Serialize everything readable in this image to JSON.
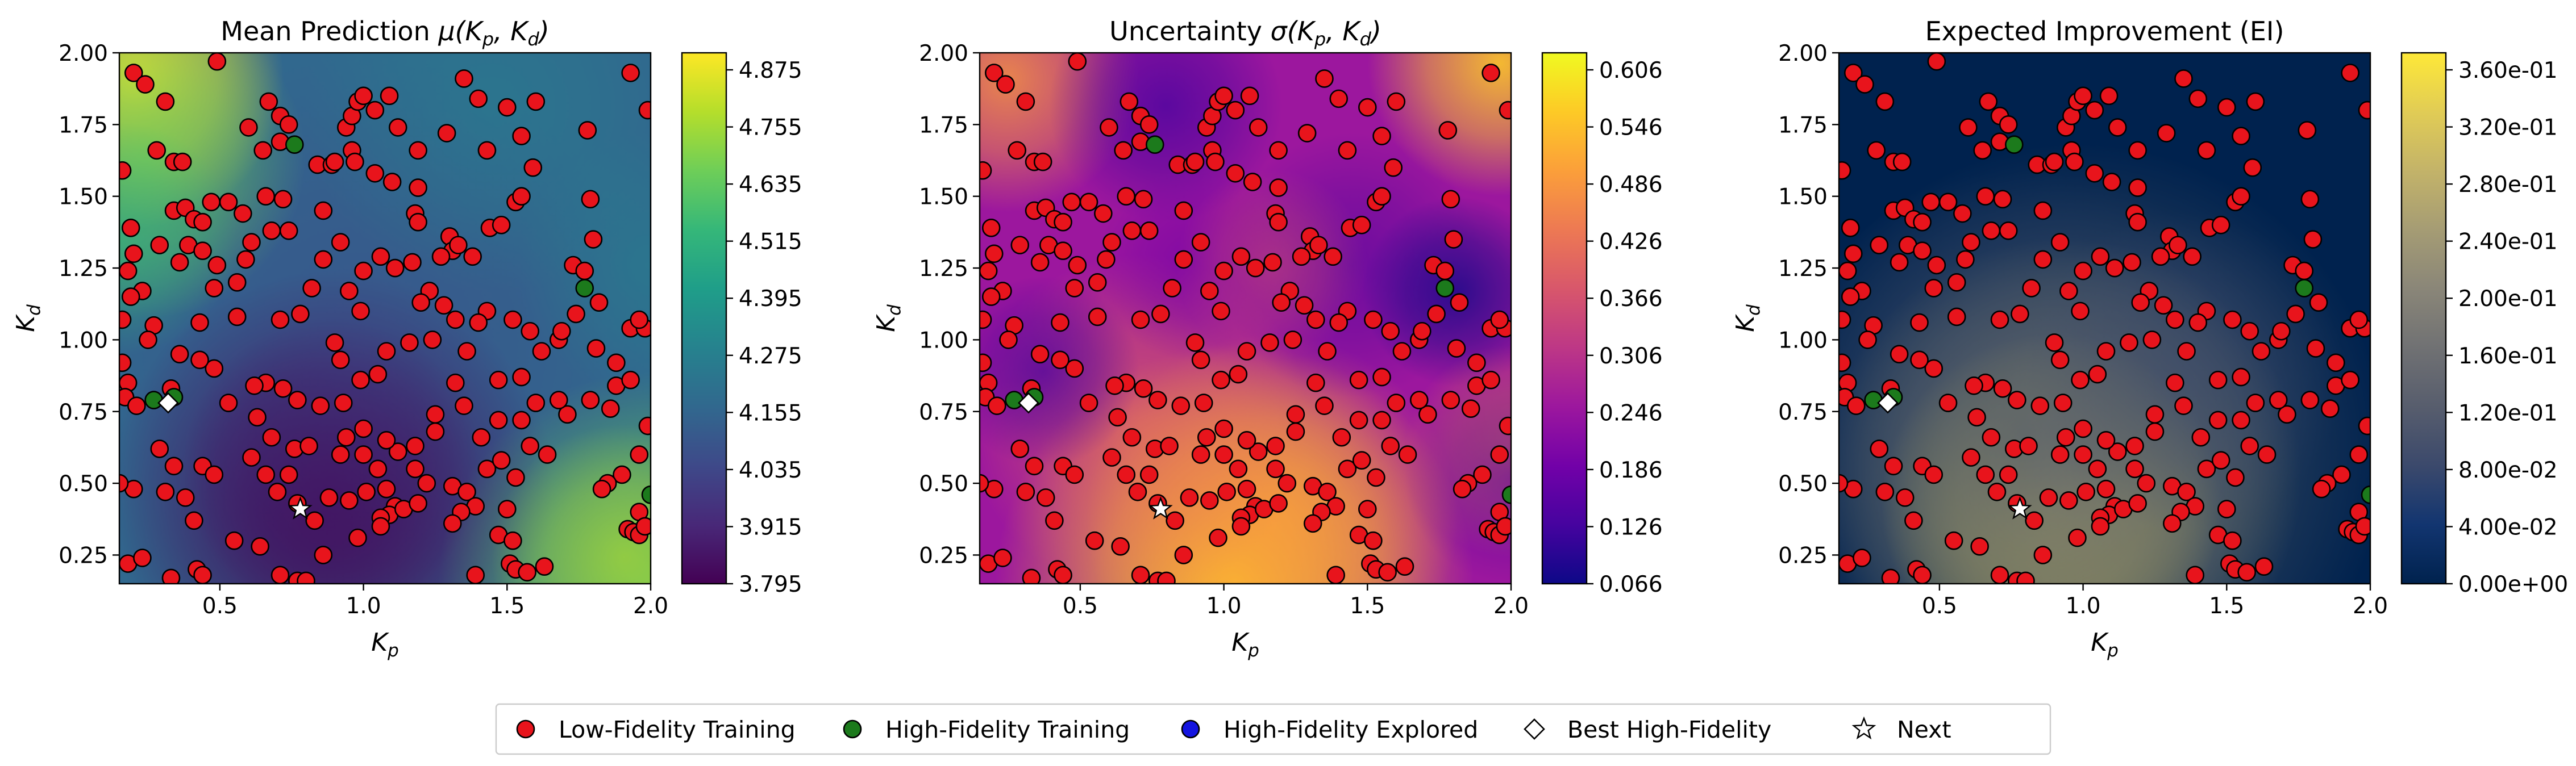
{
  "figure": {
    "panels": [
      {
        "id": "mean",
        "title": "Mean Prediction μ(Kₚ, K_d)",
        "title_parts": {
          "prefix": "Mean Prediction ",
          "func": "μ"
        },
        "colormap": "viridis",
        "colorbar_ticks": [
          "4.875",
          "4.755",
          "4.635",
          "4.515",
          "4.395",
          "4.275",
          "4.155",
          "4.035",
          "3.915",
          "3.795"
        ]
      },
      {
        "id": "uncertainty",
        "title": "Uncertainty σ(Kₚ, K_d)",
        "title_parts": {
          "prefix": "Uncertainty ",
          "func": "σ"
        },
        "colormap": "plasma",
        "colorbar_ticks": [
          "0.606",
          "0.546",
          "0.486",
          "0.426",
          "0.366",
          "0.306",
          "0.246",
          "0.186",
          "0.126",
          "0.066"
        ]
      },
      {
        "id": "ei",
        "title": "Expected Improvement (EI)",
        "title_parts": {
          "prefix": "Expected Improvement (EI)",
          "func": ""
        },
        "colormap": "cividis",
        "colorbar_ticks": [
          "3.60e-01",
          "3.20e-01",
          "2.80e-01",
          "2.40e-01",
          "2.00e-01",
          "1.60e-01",
          "1.20e-01",
          "8.00e-02",
          "4.00e-02",
          "0.00e+00"
        ]
      }
    ],
    "x_axis": {
      "label": "K",
      "label_sub": "p",
      "ticks": [
        "0.5",
        "1.0",
        "1.5",
        "2.0"
      ]
    },
    "y_axis": {
      "label": "K",
      "label_sub": "d",
      "ticks": [
        "2.00",
        "1.75",
        "1.50",
        "1.25",
        "1.00",
        "0.75",
        "0.50",
        "0.25"
      ]
    },
    "legend": [
      {
        "label": "Low-Fidelity Training",
        "marker": "circle",
        "color": "#e8141c"
      },
      {
        "label": "High-Fidelity Training",
        "marker": "circle",
        "color": "#1c7a1c"
      },
      {
        "label": "High-Fidelity Explored",
        "marker": "circle",
        "color": "#1414e0"
      },
      {
        "label": "Best High-Fidelity",
        "marker": "diamond",
        "color": "#ffffff"
      },
      {
        "label": "Next",
        "marker": "star",
        "color": "#ffffff"
      }
    ]
  },
  "chart_data": {
    "type": "scatter",
    "xlim": [
      0.15,
      2.0
    ],
    "ylim": [
      0.15,
      2.0
    ],
    "x_ticks": [
      0.5,
      1.0,
      1.5,
      2.0
    ],
    "y_ticks": [
      0.25,
      0.5,
      0.75,
      1.0,
      1.25,
      1.5,
      1.75,
      2.0
    ],
    "background": "heatmap",
    "grid": false,
    "legend_position": "bottom-center",
    "series": [
      {
        "name": "Low-Fidelity Training",
        "color": "#e8141c",
        "points": [
          [
            0.2,
            1.93
          ],
          [
            0.24,
            1.89
          ],
          [
            0.31,
            1.83
          ],
          [
            0.49,
            1.97
          ],
          [
            0.16,
            1.59
          ],
          [
            0.19,
            1.39
          ],
          [
            0.2,
            1.3
          ],
          [
            0.18,
            1.24
          ],
          [
            0.23,
            1.17
          ],
          [
            0.19,
            1.15
          ],
          [
            0.16,
            1.07
          ],
          [
            0.27,
            1.05
          ],
          [
            0.25,
            1.0
          ],
          [
            0.16,
            0.92
          ],
          [
            0.18,
            0.85
          ],
          [
            0.17,
            0.8
          ],
          [
            0.28,
            1.66
          ],
          [
            0.34,
            1.62
          ],
          [
            0.37,
            1.62
          ],
          [
            0.34,
            1.45
          ],
          [
            0.38,
            1.46
          ],
          [
            0.41,
            1.42
          ],
          [
            0.44,
            1.41
          ],
          [
            0.47,
            1.48
          ],
          [
            0.53,
            1.48
          ],
          [
            0.58,
            1.44
          ],
          [
            0.6,
            1.74
          ],
          [
            0.67,
            1.83
          ],
          [
            0.71,
            1.78
          ],
          [
            0.74,
            1.75
          ],
          [
            0.65,
            1.66
          ],
          [
            0.71,
            1.69
          ],
          [
            0.66,
            1.5
          ],
          [
            0.72,
            1.49
          ],
          [
            0.61,
            1.34
          ],
          [
            0.68,
            1.38
          ],
          [
            0.74,
            1.38
          ],
          [
            0.84,
            1.61
          ],
          [
            0.89,
            1.61
          ],
          [
            0.9,
            1.62
          ],
          [
            0.96,
            1.66
          ],
          [
            0.94,
            1.74
          ],
          [
            0.96,
            1.78
          ],
          [
            0.98,
            1.83
          ],
          [
            1.0,
            1.85
          ],
          [
            1.04,
            1.8
          ],
          [
            0.97,
            1.62
          ],
          [
            0.86,
            1.45
          ],
          [
            0.92,
            1.34
          ],
          [
            1.04,
            1.58
          ],
          [
            1.1,
            1.55
          ],
          [
            1.19,
            1.53
          ],
          [
            1.18,
            1.44
          ],
          [
            1.19,
            1.41
          ],
          [
            1.3,
            1.36
          ],
          [
            1.31,
            1.31
          ],
          [
            1.33,
            1.33
          ],
          [
            1.27,
            1.29
          ],
          [
            1.17,
            1.27
          ],
          [
            1.11,
            1.25
          ],
          [
            1.23,
            1.17
          ],
          [
            1.2,
            1.13
          ],
          [
            1.38,
            1.29
          ],
          [
            1.44,
            1.39
          ],
          [
            1.48,
            1.4
          ],
          [
            1.53,
            1.48
          ],
          [
            1.55,
            1.5
          ],
          [
            1.59,
            1.6
          ],
          [
            1.55,
            1.71
          ],
          [
            1.5,
            1.81
          ],
          [
            1.43,
            1.66
          ],
          [
            1.4,
            1.84
          ],
          [
            1.35,
            1.91
          ],
          [
            1.29,
            1.72
          ],
          [
            1.19,
            1.66
          ],
          [
            1.12,
            1.74
          ],
          [
            1.09,
            1.85
          ],
          [
            1.6,
            1.83
          ],
          [
            1.78,
            1.73
          ],
          [
            1.79,
            1.49
          ],
          [
            1.8,
            1.35
          ],
          [
            1.73,
            1.26
          ],
          [
            1.77,
            1.24
          ],
          [
            1.74,
            1.09
          ],
          [
            1.68,
            1.0
          ],
          [
            1.62,
            0.96
          ],
          [
            1.58,
            1.03
          ],
          [
            1.52,
            1.07
          ],
          [
            1.43,
            1.1
          ],
          [
            1.4,
            1.06
          ],
          [
            1.32,
            1.07
          ],
          [
            1.36,
            0.96
          ],
          [
            1.32,
            0.85
          ],
          [
            1.25,
            0.74
          ],
          [
            1.25,
            0.68
          ],
          [
            1.18,
            0.63
          ],
          [
            1.12,
            0.61
          ],
          [
            1.08,
            0.65
          ],
          [
            1.05,
            0.55
          ],
          [
            1.08,
            0.48
          ],
          [
            1.11,
            0.42
          ],
          [
            1.09,
            0.39
          ],
          [
            1.06,
            0.38
          ],
          [
            1.01,
            0.47
          ],
          [
            0.95,
            0.44
          ],
          [
            0.88,
            0.45
          ],
          [
            0.83,
            0.37
          ],
          [
            0.77,
            0.43
          ],
          [
            0.7,
            0.47
          ],
          [
            0.66,
            0.53
          ],
          [
            0.61,
            0.59
          ],
          [
            0.63,
            0.73
          ],
          [
            0.68,
            0.66
          ],
          [
            0.76,
            0.62
          ],
          [
            0.81,
            0.63
          ],
          [
            0.74,
            0.53
          ],
          [
            0.77,
            0.79
          ],
          [
            0.72,
            0.83
          ],
          [
            0.66,
            0.85
          ],
          [
            0.62,
            0.84
          ],
          [
            0.53,
            0.78
          ],
          [
            0.48,
            0.9
          ],
          [
            0.43,
            0.93
          ],
          [
            0.33,
            0.83
          ],
          [
            0.21,
            0.77
          ],
          [
            0.29,
            0.62
          ],
          [
            0.34,
            0.56
          ],
          [
            0.44,
            0.56
          ],
          [
            0.48,
            0.53
          ],
          [
            0.38,
            0.45
          ],
          [
            0.31,
            0.47
          ],
          [
            0.2,
            0.48
          ],
          [
            0.15,
            0.5
          ],
          [
            0.18,
            0.22
          ],
          [
            0.23,
            0.24
          ],
          [
            0.33,
            0.17
          ],
          [
            0.42,
            0.2
          ],
          [
            0.44,
            0.18
          ],
          [
            0.41,
            0.37
          ],
          [
            0.55,
            0.3
          ],
          [
            0.64,
            0.28
          ],
          [
            0.71,
            0.18
          ],
          [
            0.77,
            0.16
          ],
          [
            0.8,
            0.16
          ],
          [
            0.86,
            0.25
          ],
          [
            0.98,
            0.31
          ],
          [
            1.06,
            0.35
          ],
          [
            1.14,
            0.41
          ],
          [
            1.19,
            0.43
          ],
          [
            1.18,
            0.55
          ],
          [
            1.22,
            0.5
          ],
          [
            1.31,
            0.49
          ],
          [
            1.36,
            0.47
          ],
          [
            1.39,
            0.42
          ],
          [
            1.34,
            0.4
          ],
          [
            1.31,
            0.36
          ],
          [
            1.43,
            0.55
          ],
          [
            1.48,
            0.58
          ],
          [
            1.53,
            0.52
          ],
          [
            1.5,
            0.41
          ],
          [
            1.47,
            0.32
          ],
          [
            1.52,
            0.3
          ],
          [
            1.51,
            0.22
          ],
          [
            1.53,
            0.2
          ],
          [
            1.57,
            0.19
          ],
          [
            1.63,
            0.21
          ],
          [
            1.39,
            0.18
          ],
          [
            1.41,
            0.66
          ],
          [
            1.47,
            0.72
          ],
          [
            1.55,
            0.72
          ],
          [
            1.58,
            0.63
          ],
          [
            1.64,
            0.6
          ],
          [
            1.71,
            0.74
          ],
          [
            1.79,
            0.79
          ],
          [
            1.86,
            0.76
          ],
          [
            1.88,
            0.84
          ],
          [
            1.93,
            0.86
          ],
          [
            1.88,
            0.92
          ],
          [
            1.81,
            0.97
          ],
          [
            1.93,
            1.04
          ],
          [
            1.98,
            1.04
          ],
          [
            1.96,
            1.07
          ],
          [
            1.99,
            0.7
          ],
          [
            1.96,
            0.6
          ],
          [
            1.9,
            0.53
          ],
          [
            1.85,
            0.5
          ],
          [
            1.83,
            0.48
          ],
          [
            1.96,
            0.4
          ],
          [
            1.92,
            0.34
          ],
          [
            1.94,
            0.33
          ],
          [
            1.96,
            0.32
          ],
          [
            1.98,
            0.35
          ],
          [
            1.99,
            1.8
          ],
          [
            1.93,
            1.93
          ],
          [
            1.82,
            1.13
          ],
          [
            1.69,
            1.03
          ],
          [
            1.28,
            1.12
          ],
          [
            1.24,
            1.0
          ],
          [
            1.16,
            0.99
          ],
          [
            1.08,
            0.96
          ],
          [
            1.05,
            0.88
          ],
          [
            0.99,
            0.86
          ],
          [
            0.92,
            0.93
          ],
          [
            0.9,
            0.99
          ],
          [
            0.99,
            1.1
          ],
          [
            0.95,
            1.17
          ],
          [
            1.0,
            1.24
          ],
          [
            1.06,
            1.29
          ],
          [
            0.86,
            1.28
          ],
          [
            0.82,
            1.18
          ],
          [
            0.78,
            1.09
          ],
          [
            0.71,
            1.07
          ],
          [
            0.56,
            1.08
          ],
          [
            0.48,
            1.18
          ],
          [
            0.56,
            1.2
          ],
          [
            0.59,
            1.28
          ],
          [
            0.49,
            1.26
          ],
          [
            0.39,
            1.33
          ],
          [
            0.29,
            1.33
          ],
          [
            0.36,
            1.27
          ],
          [
            0.44,
            1.31
          ],
          [
            0.43,
            1.06
          ],
          [
            0.36,
            0.95
          ],
          [
            0.85,
            0.77
          ],
          [
            0.93,
            0.78
          ],
          [
            1.0,
            0.69
          ],
          [
            1.0,
            0.6
          ],
          [
            0.92,
            0.6
          ],
          [
            0.94,
            0.66
          ],
          [
            1.35,
            0.77
          ],
          [
            1.47,
            0.86
          ],
          [
            1.55,
            0.87
          ],
          [
            1.6,
            0.78
          ],
          [
            1.68,
            0.79
          ]
        ]
      },
      {
        "name": "High-Fidelity Training",
        "color": "#1c7a1c",
        "points": [
          [
            0.76,
            1.68
          ],
          [
            1.77,
            1.18
          ],
          [
            0.27,
            0.79
          ],
          [
            0.34,
            0.8
          ],
          [
            2.0,
            0.46
          ]
        ]
      },
      {
        "name": "High-Fidelity Explored",
        "color": "#1414e0",
        "points": []
      },
      {
        "name": "Best High-Fidelity",
        "color": "#ffffff",
        "points": [
          [
            0.32,
            0.78
          ]
        ]
      },
      {
        "name": "Next",
        "color": "#ffffff",
        "points": [
          [
            0.78,
            0.41
          ]
        ]
      }
    ]
  }
}
